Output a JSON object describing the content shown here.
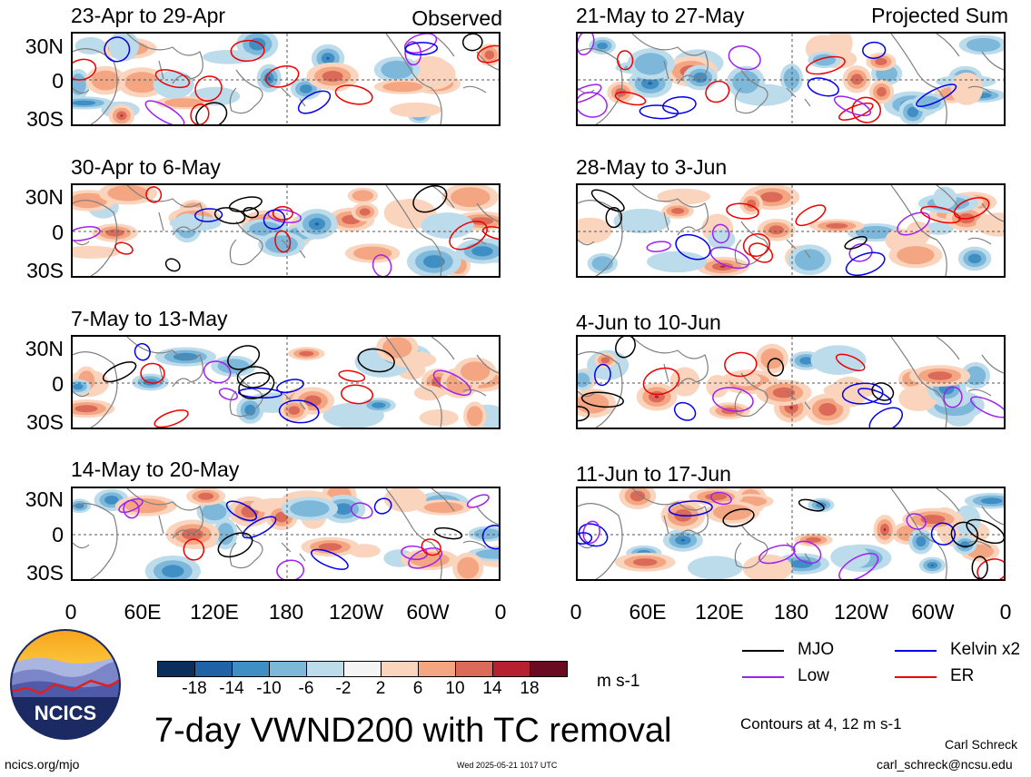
{
  "corner_labels": {
    "left": "Observed",
    "right": "Projected Sum"
  },
  "panels": [
    {
      "title": "23-Apr to 29-Apr"
    },
    {
      "title": "30-Apr to 6-May"
    },
    {
      "title": "7-May to 13-May"
    },
    {
      "title": "14-May to 20-May"
    },
    {
      "title": "21-May to 27-May"
    },
    {
      "title": "28-May to 3-Jun"
    },
    {
      "title": "4-Jun to 10-Jun"
    },
    {
      "title": "11-Jun to 17-Jun"
    }
  ],
  "lat_labels": [
    "30N",
    "0",
    "30S"
  ],
  "lon_labels": [
    "0",
    "60E",
    "120E",
    "180",
    "120W",
    "60W",
    "0"
  ],
  "colorbar": {
    "colors": [
      "#0a2f5c",
      "#1f62a5",
      "#3f8fc5",
      "#7db8da",
      "#bcdbeb",
      "#f5f5f5",
      "#fbd4bd",
      "#f4a683",
      "#db6a58",
      "#b72030",
      "#6a0b22"
    ],
    "tick_labels": [
      "-18",
      "-14",
      "-10",
      "-6",
      "-2",
      "2",
      "6",
      "10",
      "14",
      "18"
    ],
    "unit": "m s-1"
  },
  "legend": {
    "items": [
      {
        "label": "MJO",
        "color": "#000000"
      },
      {
        "label": "Kelvin x2",
        "color": "#0000ee"
      },
      {
        "label": "Low",
        "color": "#a020f0"
      },
      {
        "label": "ER",
        "color": "#ee0000"
      }
    ],
    "contours_note": "Contours at 4, 12 m s-1"
  },
  "logo": {
    "text": "NCICS"
  },
  "main_title": "7-day VWND200 with TC removal",
  "footer": {
    "url": "ncics.org/mjo",
    "timestamp": "Wed 2025-05-21 1017 UTC",
    "author": "Carl Schreck",
    "email": "carl_schreck@ncsu.edu"
  }
}
